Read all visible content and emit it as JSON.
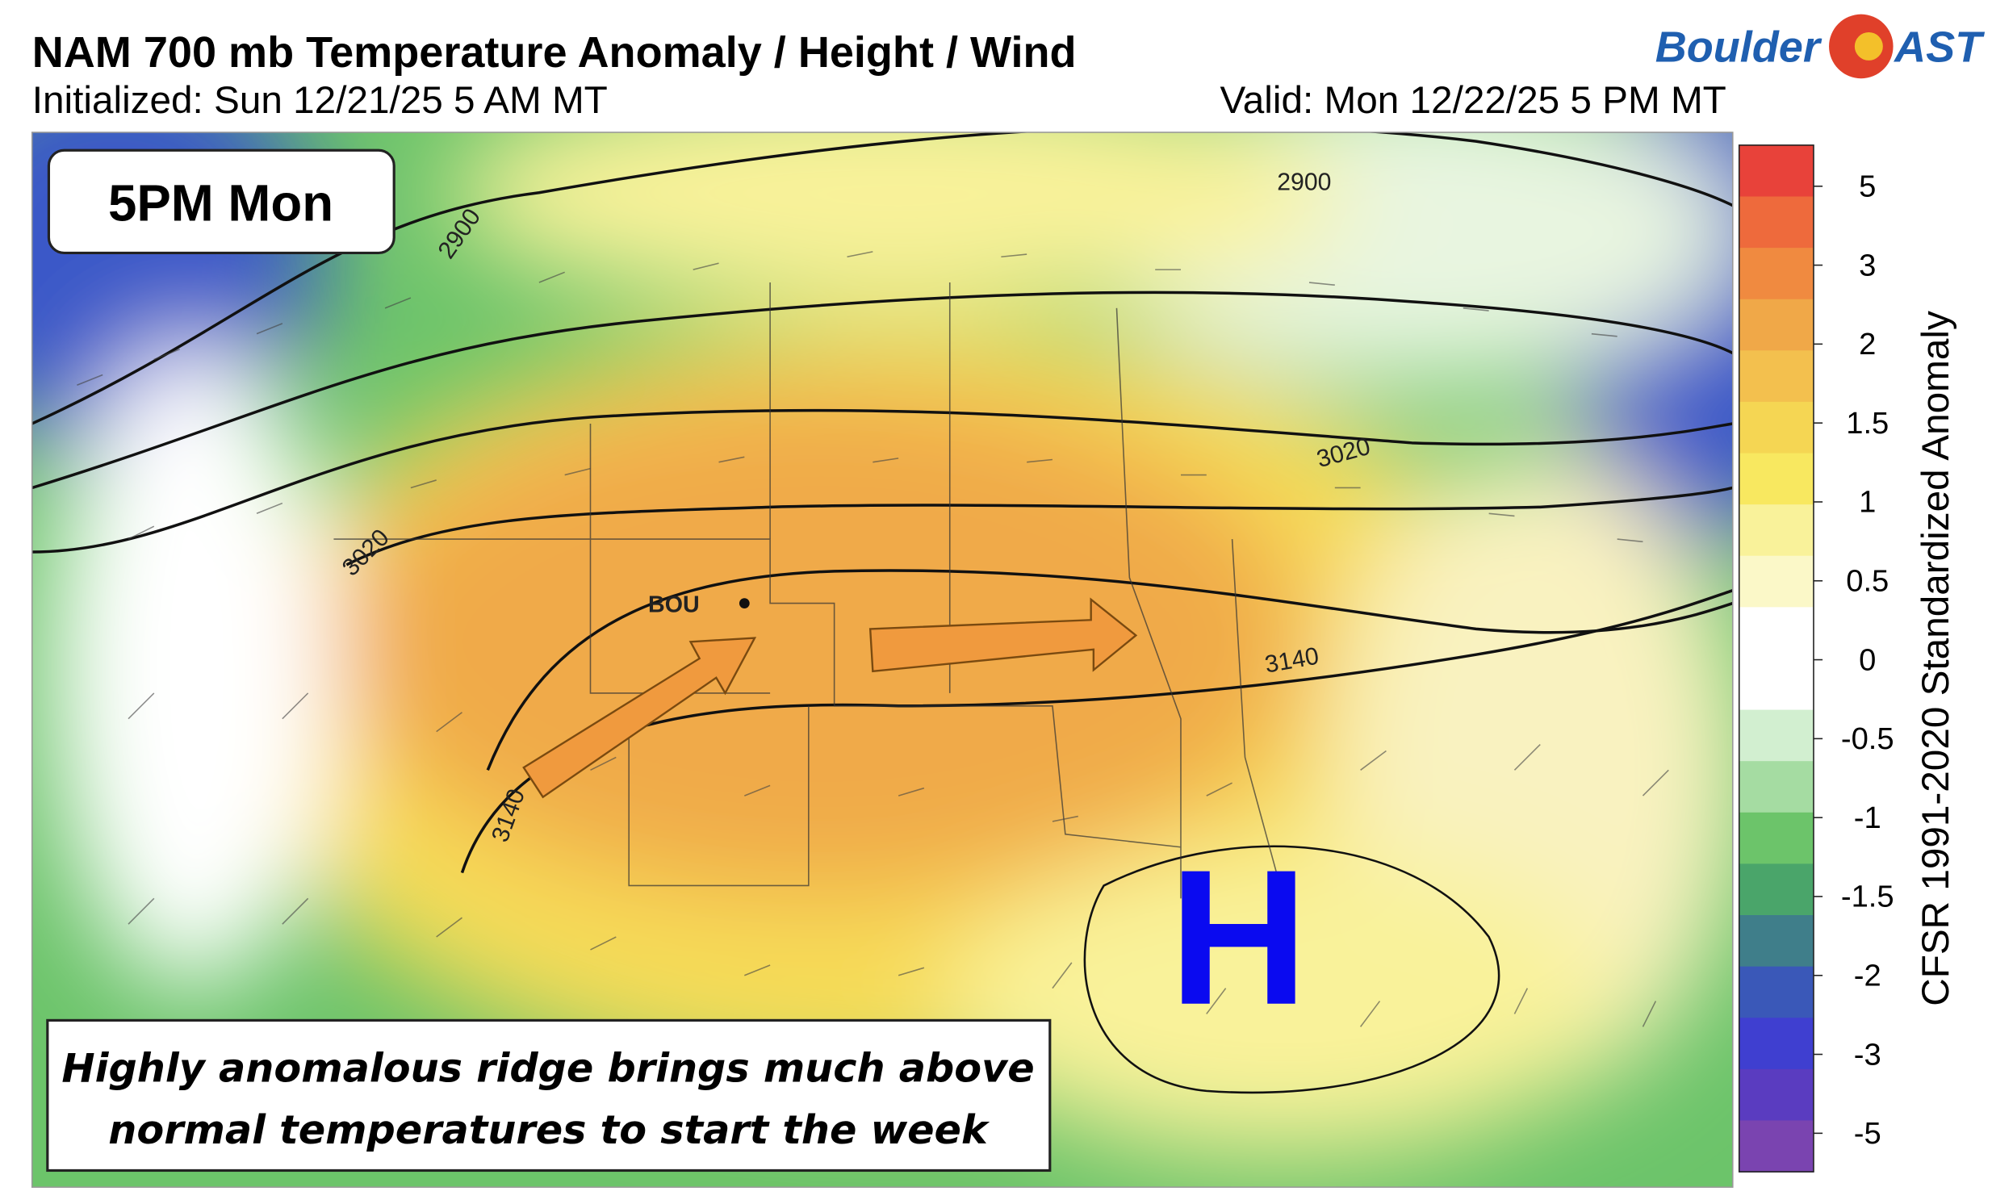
{
  "header": {
    "title": "NAM 700 mb Temperature Anomaly / Height / Wind",
    "initialized": "Initialized: Sun 12/21/25 5 AM MT",
    "valid": "Valid: Mon 12/22/25 5 PM MT",
    "logo_left": "Boulder",
    "logo_right": "AST"
  },
  "map": {
    "time_label": "5PM Mon",
    "station": "BOU",
    "high_label": "H",
    "contour_labels": [
      "2900",
      "2900",
      "3020",
      "3020",
      "3140",
      "3140"
    ]
  },
  "colorbar": {
    "title": "CFSR 1991-2020 Standardized Anomaly",
    "labels": [
      "5",
      "3",
      "2",
      "1.5",
      "1",
      "0.5",
      "0",
      "-0.5",
      "-1",
      "-1.5",
      "-2",
      "-3",
      "-5"
    ]
  },
  "caption": {
    "line1": "Highly anomalous ridge brings much above",
    "line2": "normal temperatures to start the week"
  }
}
